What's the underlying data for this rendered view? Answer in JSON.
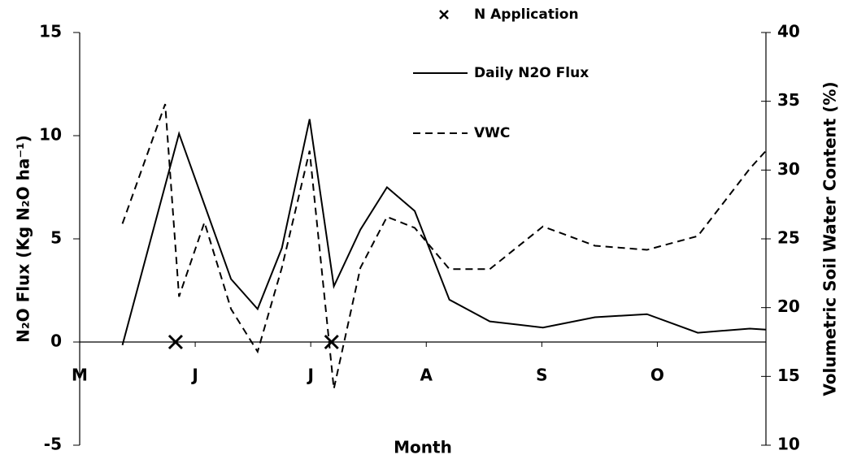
{
  "chart_data": {
    "type": "line",
    "xlabel": "Month",
    "ylabel": "N₂O Flux (Kg N₂O ha⁻¹)",
    "y2label": "Volumetric Soil Water Content (%)",
    "xlim": [
      0,
      5.94
    ],
    "xticks": [
      {
        "value": 0,
        "label": "M"
      },
      {
        "value": 1,
        "label": "J"
      },
      {
        "value": 2,
        "label": "J"
      },
      {
        "value": 3,
        "label": "A"
      },
      {
        "value": 4,
        "label": "S"
      },
      {
        "value": 5,
        "label": "O"
      }
    ],
    "ylim": [
      -5,
      15
    ],
    "yticks": [
      -5,
      0,
      5,
      10,
      15
    ],
    "y2lim": [
      10,
      40
    ],
    "y2ticks": [
      10,
      15,
      20,
      25,
      30,
      35,
      40
    ],
    "series": [
      {
        "name": "N Application",
        "color": "#000000",
        "style": "marker",
        "x": [
          0.83,
          2.18
        ],
        "values": [
          0,
          0
        ]
      },
      {
        "name": "Daily N2O Flux",
        "color": "#000000",
        "style": "solid",
        "x": [
          0.37,
          0.86,
          1.31,
          1.54,
          1.75,
          1.99,
          2.2,
          2.43,
          2.66,
          2.9,
          3.2,
          3.55,
          4.01,
          4.46,
          4.91,
          5.35,
          5.8,
          5.94
        ],
        "values": [
          -0.15,
          10.1,
          3.05,
          1.6,
          4.55,
          10.8,
          2.7,
          5.45,
          7.5,
          6.35,
          2.05,
          1.0,
          0.7,
          1.2,
          1.35,
          0.45,
          0.65,
          0.6
        ]
      },
      {
        "name": "VWC",
        "color": "#000000",
        "style": "dashed",
        "axis": "y2",
        "x": [
          0.37,
          0.74,
          0.86,
          1.08,
          1.31,
          1.54,
          1.75,
          1.99,
          2.2,
          2.43,
          2.66,
          2.9,
          3.2,
          3.55,
          4.01,
          4.46,
          4.91,
          5.35,
          5.8,
          5.94
        ],
        "values": [
          26.1,
          34.8,
          20.8,
          26.2,
          19.9,
          16.8,
          22.9,
          31.4,
          14.1,
          22.9,
          26.6,
          25.8,
          22.8,
          22.8,
          25.9,
          24.5,
          24.2,
          25.2,
          30.1,
          31.4
        ]
      }
    ]
  }
}
